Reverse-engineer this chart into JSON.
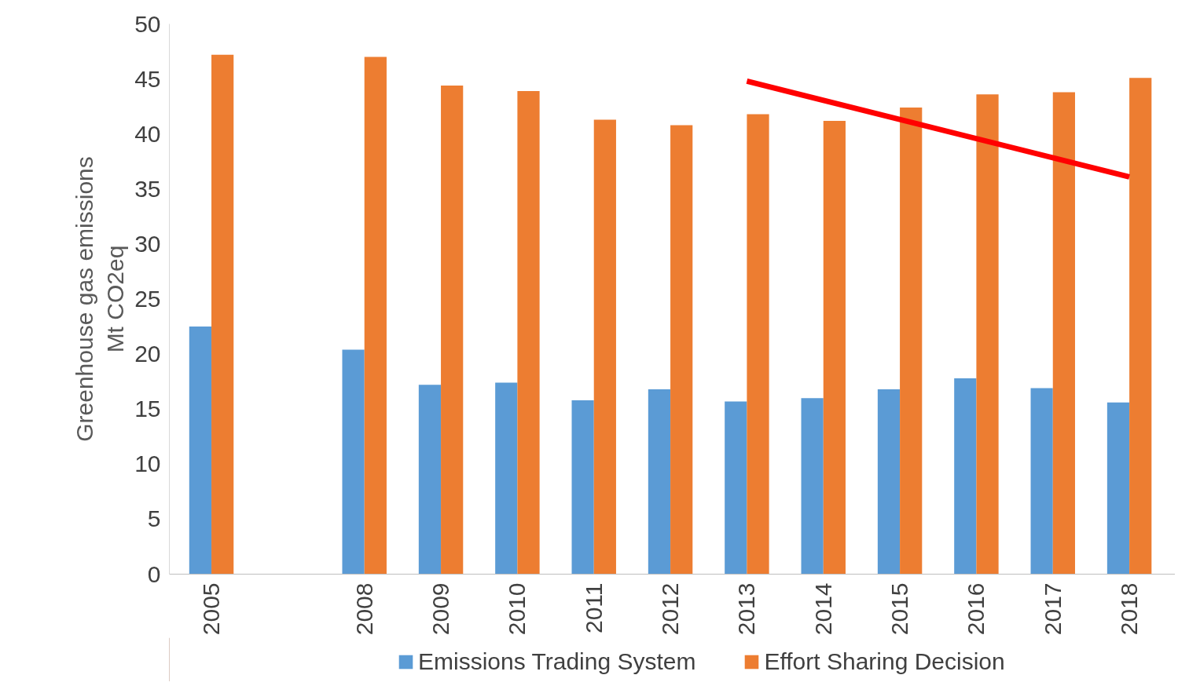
{
  "chart_data": {
    "type": "bar",
    "ylabel": "Greenhouse gas emissions\nMt CO2eq",
    "categories": [
      "2005",
      null,
      "2008",
      "2009",
      "2010",
      "2011",
      "2012",
      "2013",
      "2014",
      "2015",
      "2016",
      "2017",
      "2018"
    ],
    "series": [
      {
        "name": "Emissions Trading System",
        "color": "#5b9bd5",
        "values": [
          22.5,
          null,
          20.4,
          17.2,
          17.4,
          15.8,
          16.8,
          15.7,
          16.0,
          16.8,
          17.8,
          16.9,
          15.6
        ]
      },
      {
        "name": "Effort Sharing Decision",
        "color": "#ed7d31",
        "values": [
          47.2,
          null,
          47.0,
          44.4,
          43.9,
          41.3,
          40.8,
          41.8,
          41.2,
          42.4,
          43.6,
          43.8,
          45.1
        ]
      },
      {
        "type": "line",
        "color": "#ff0000",
        "values": [
          null,
          null,
          null,
          null,
          null,
          null,
          null,
          44.8,
          null,
          null,
          null,
          null,
          36.1
        ]
      }
    ],
    "ylim": [
      0,
      50
    ],
    "yticks": [
      0,
      5,
      10,
      15,
      20,
      25,
      30,
      35,
      40,
      45,
      50
    ],
    "grid": false,
    "legend": "bottom"
  }
}
